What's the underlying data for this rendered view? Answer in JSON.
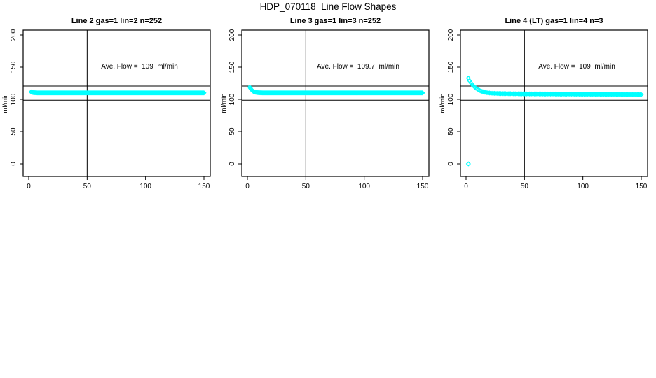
{
  "page": {
    "background_color": "#ffffff",
    "title": "HDP_070118  Line Flow Shapes"
  },
  "chart_data": {
    "type": "scatter",
    "title": "HDP_070118  Line Flow Shapes",
    "marker": "open-diamond",
    "point_color": "#00FFFF",
    "axis_color": "#000000",
    "ylabel": "ml/min",
    "xlabel": "",
    "xlim": [
      -5,
      156
    ],
    "ylim": [
      -20,
      208
    ],
    "x_ticks": [
      0,
      50,
      100,
      150
    ],
    "y_ticks": [
      0,
      50,
      100,
      150,
      200
    ],
    "y_tick_rotation": -90,
    "grid": false,
    "legend": false,
    "vline_x": 50,
    "hlines_y": [
      120.7,
      98.7
    ],
    "annotation_anchor": {
      "x": 95,
      "y": 150
    },
    "panels": [
      {
        "title": "Line 2 gas=1 lin=2 n=252",
        "annotation": "Ave. Flow =  109  ml/min",
        "ave_flow": 109,
        "n": 252,
        "x_start": 2,
        "x_end": 150,
        "points_drawn": 250,
        "key_points": [
          [
            2,
            111.5
          ],
          [
            4,
            110.5
          ],
          [
            8,
            110
          ],
          [
            50,
            110
          ],
          [
            100,
            110
          ],
          [
            150,
            110
          ]
        ],
        "outlier_points": []
      },
      {
        "title": "Line 3 gas=1 lin=3 n=252",
        "annotation": "Ave. Flow =  109.7  ml/min",
        "ave_flow": 109.7,
        "n": 252,
        "x_start": 2,
        "x_end": 150,
        "points_drawn": 250,
        "key_points": [
          [
            2,
            119
          ],
          [
            3,
            116
          ],
          [
            4,
            114
          ],
          [
            5,
            112.5
          ],
          [
            6,
            111.5
          ],
          [
            8,
            110.7
          ],
          [
            10,
            110.3
          ],
          [
            14,
            110
          ],
          [
            50,
            110
          ],
          [
            100,
            110
          ],
          [
            150,
            110
          ]
        ],
        "outlier_points": []
      },
      {
        "title": "Line 4 (LT) gas=1 lin=4 n=3",
        "annotation": "Ave. Flow =  109  ml/min",
        "ave_flow": 109,
        "n": 3,
        "x_start": 2,
        "x_end": 150,
        "points_drawn": 140,
        "key_points": [
          [
            2,
            133
          ],
          [
            3,
            129
          ],
          [
            4,
            126
          ],
          [
            5,
            123.5
          ],
          [
            6,
            121.5
          ],
          [
            8,
            118
          ],
          [
            10,
            115.5
          ],
          [
            12,
            113.5
          ],
          [
            15,
            111.5
          ],
          [
            18,
            110.3
          ],
          [
            22,
            109.5
          ],
          [
            30,
            109
          ],
          [
            50,
            108.5
          ],
          [
            100,
            108
          ],
          [
            150,
            107.5
          ]
        ],
        "outlier_points": [
          [
            2,
            0
          ]
        ]
      }
    ]
  }
}
